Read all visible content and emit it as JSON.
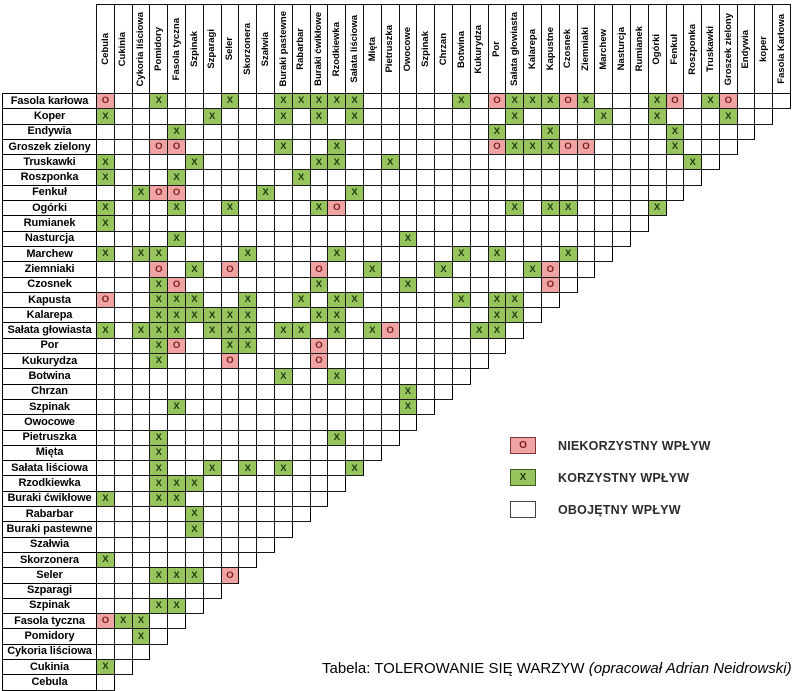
{
  "chart_data": {
    "type": "table",
    "title": "Tabela: TOLEROWANIE SIĘ WARZYW",
    "marks": {
      "favorable": "X",
      "unfavorable": "O"
    },
    "colors": {
      "favorable_bg": "#98c45e",
      "unfavorable_bg": "#f0a3a3",
      "neutral_bg": "#ffffff",
      "grid": "#181818"
    },
    "columns": [
      "Cebula",
      "Cukinia",
      "Cykoria liściowa",
      "Pomidory",
      "Fasola tyczna",
      "Szpinak",
      "Szparagi",
      "Seler",
      "Skorzonera",
      "Szałwia",
      "Buraki pastewne",
      "Rabarbar",
      "Buraki ćwikłowe",
      "Rzodkiewka",
      "Sałata liściowa",
      "Mięta",
      "Pietruszka",
      "Owocowe",
      "Szpinak",
      "Chrzan",
      "Botwina",
      "Kukurydza",
      "Por",
      "Sałata głowiasta",
      "Kalarepa",
      "Kapustne",
      "Czosnek",
      "Ziemniaki",
      "Marchew",
      "Nasturcja",
      "Rumianek",
      "Ogórki",
      "Fenkuł",
      "Roszponka",
      "Truskawki",
      "Groszek zielony",
      "Endywia",
      "koper",
      "Fasola Karłowa"
    ],
    "rows": [
      {
        "label": "Fasola karłowa",
        "cells": "O..X...X..XXXXX.....X.OXXXOX...XO.XO..."
      },
      {
        "label": "Koper",
        "cells": "X.....X...X.X.X........X....X..X...X.."
      },
      {
        "label": "Endywia",
        "cells": "....X.................X..X......X...."
      },
      {
        "label": "Groszek zielony",
        "cells": "...OO.....X..X........OXXXOO....X..."
      },
      {
        "label": "Truskawki",
        "cells": "X....X......XX..X................X."
      },
      {
        "label": "Roszponka",
        "cells": "X...X......X......................"
      },
      {
        "label": "Fenkuł",
        "cells": "..XOO....X....X.................."
      },
      {
        "label": "Ogórki",
        "cells": "X...X..X....XO.........X.XX....X"
      },
      {
        "label": "Rumianek",
        "cells": "X.............................."
      },
      {
        "label": "Nasturcja",
        "cells": "....X............X............"
      },
      {
        "label": "Marchew",
        "cells": "X.XX....X....X......X.X...X.."
      },
      {
        "label": "Ziemniaki",
        "cells": "...O.X.O....O..X...X....XO.."
      },
      {
        "label": "Czosnek",
        "cells": "...XO.......X....X.......O."
      },
      {
        "label": "Kapusta",
        "cells": "O..XXX..X..X.XX.....X.XX.."
      },
      {
        "label": "Kalarepa",
        "cells": "...XXXXXX...XX........XX."
      },
      {
        "label": "Sałata głowiasta",
        "cells": "X.XXX.XXX.XX.X.XO....XX."
      },
      {
        "label": "Por",
        "cells": "...XO..XX...O.........."
      },
      {
        "label": "Kukurydza",
        "cells": "...X...O....O........."
      },
      {
        "label": "Botwina",
        "cells": "..........X..X......."
      },
      {
        "label": "Chrzan",
        "cells": ".................X.."
      },
      {
        "label": "Szpinak",
        "cells": "....X............X."
      },
      {
        "label": "Owocowe",
        "cells": ".................."
      },
      {
        "label": "Pietruszka",
        "cells": "...X.........X..."
      },
      {
        "label": "Mięta",
        "cells": "...X............"
      },
      {
        "label": "Sałata liściowa",
        "cells": "...X..X.X.X...X"
      },
      {
        "label": "Rzodkiewka",
        "cells": "...XXX........"
      },
      {
        "label": "Buraki ćwikłowe",
        "cells": "X..XX........"
      },
      {
        "label": "Rabarbar",
        "cells": ".....X......"
      },
      {
        "label": "Buraki pastewne",
        "cells": ".....X....."
      },
      {
        "label": "Szałwia",
        "cells": ".........."
      },
      {
        "label": "Skorzonera",
        "cells": "X........"
      },
      {
        "label": "Seler",
        "cells": "...XXX.O"
      },
      {
        "label": "Szparagi",
        "cells": "......."
      },
      {
        "label": "Szpinak",
        "cells": "...XX."
      },
      {
        "label": "Fasola tyczna",
        "cells": "OXX.."
      },
      {
        "label": "Pomidory",
        "cells": "..X."
      },
      {
        "label": "Cykoria liściowa",
        "cells": "..."
      },
      {
        "label": "Cukinia",
        "cells": "X."
      },
      {
        "label": "Cebula",
        "cells": "."
      }
    ],
    "legend": {
      "items": [
        {
          "symbol": "O",
          "type": "unfavorable",
          "label": "NIEKORZYSTNY WPŁYW"
        },
        {
          "symbol": "X",
          "type": "favorable",
          "label": "KORZYSTNY WPŁYW"
        },
        {
          "symbol": "",
          "type": "neutral",
          "label": "OBOJĘTNY WPŁYW"
        }
      ]
    },
    "caption": {
      "prefix": "Tabela: TOLEROWANIE SIĘ WARZYW ",
      "italic": "(opracował Adrian Neidrowski)"
    }
  }
}
